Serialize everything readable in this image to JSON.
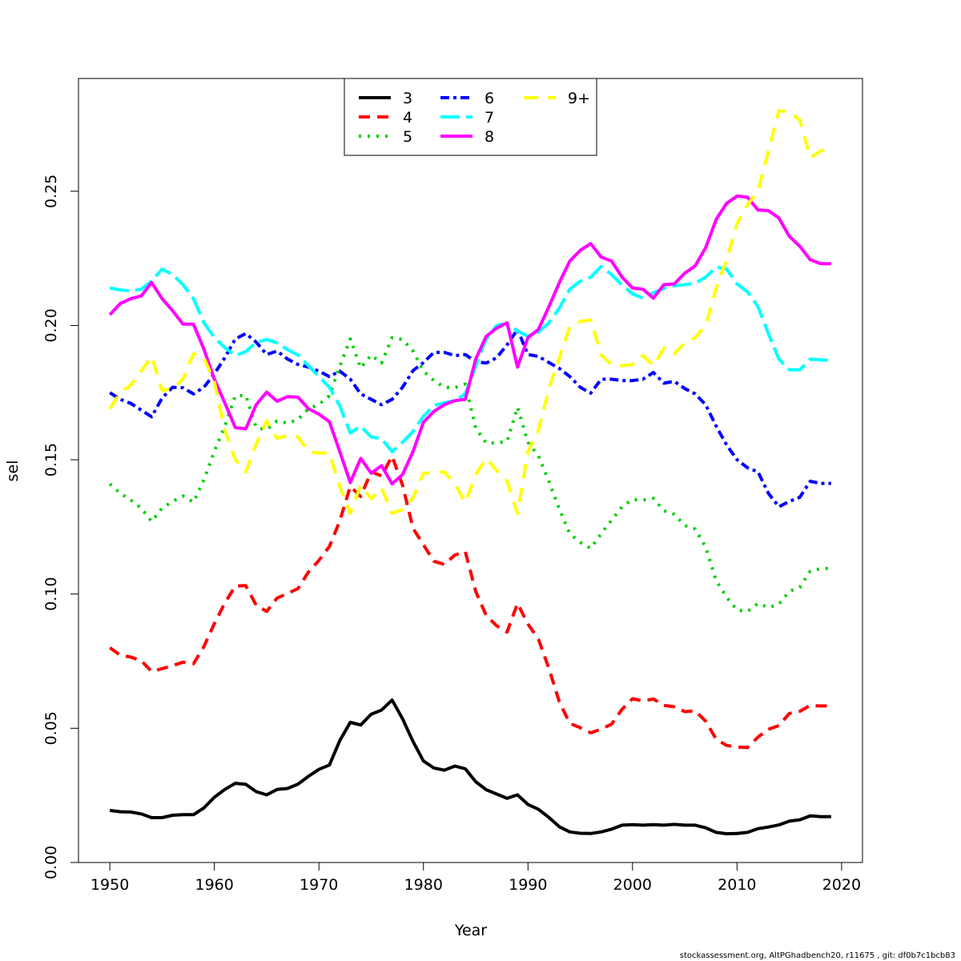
{
  "chart_data": {
    "type": "line",
    "title": "",
    "xlabel": "Year",
    "ylabel": "sel",
    "xlim": [
      1947,
      2022
    ],
    "ylim": [
      0,
      0.292
    ],
    "x_ticks": [
      1950,
      1960,
      1970,
      1980,
      1990,
      2000,
      2010,
      2020
    ],
    "x_tick_labels": [
      "1950",
      "1960",
      "1970",
      "1980",
      "1990",
      "2000",
      "2010",
      "2020"
    ],
    "y_ticks": [
      0,
      0.05,
      0.1,
      0.15,
      0.2,
      0.25
    ],
    "y_tick_labels": [
      "0.00",
      "0.05",
      "0.10",
      "0.15",
      "0.20",
      "0.25"
    ],
    "grid": false,
    "legend_position": "top-center",
    "footnote": "stockassessment.org, AltPGhadbench20, r11675 , git: df0b7c1bcb83",
    "x": [
      1950,
      1951,
      1952,
      1953,
      1954,
      1955,
      1956,
      1957,
      1958,
      1959,
      1960,
      1961,
      1962,
      1963,
      1964,
      1965,
      1966,
      1967,
      1968,
      1969,
      1970,
      1971,
      1972,
      1973,
      1974,
      1975,
      1976,
      1977,
      1978,
      1979,
      1980,
      1981,
      1982,
      1983,
      1984,
      1985,
      1986,
      1987,
      1988,
      1989,
      1990,
      1991,
      1992,
      1993,
      1994,
      1995,
      1996,
      1997,
      1998,
      1999,
      2000,
      2001,
      2002,
      2003,
      2004,
      2005,
      2006,
      2007,
      2008,
      2009,
      2010,
      2011,
      2012,
      2013,
      2014,
      2015,
      2016,
      2017,
      2018,
      2019
    ],
    "series": [
      {
        "name": "3",
        "color": "#000000",
        "dash": "solid",
        "values": [
          0.0194,
          0.0189,
          0.0188,
          0.0181,
          0.0167,
          0.0167,
          0.0176,
          0.0178,
          0.0178,
          0.0203,
          0.0243,
          0.0272,
          0.0295,
          0.0291,
          0.0264,
          0.0252,
          0.0272,
          0.0276,
          0.0292,
          0.0321,
          0.0347,
          0.0363,
          0.0454,
          0.0522,
          0.0512,
          0.0552,
          0.0568,
          0.0605,
          0.0535,
          0.0451,
          0.0378,
          0.0352,
          0.0344,
          0.0359,
          0.0349,
          0.0301,
          0.0271,
          0.0255,
          0.0239,
          0.0252,
          0.0216,
          0.0198,
          0.0168,
          0.0133,
          0.0114,
          0.0109,
          0.0108,
          0.0114,
          0.0124,
          0.0139,
          0.0141,
          0.0139,
          0.0141,
          0.0139,
          0.0142,
          0.0139,
          0.0139,
          0.0129,
          0.0112,
          0.0107,
          0.0108,
          0.0112,
          0.0126,
          0.0132,
          0.014,
          0.0154,
          0.0159,
          0.0174,
          0.0171,
          0.0171
        ]
      },
      {
        "name": "4",
        "color": "#ff0000",
        "dash": "dashed",
        "values": [
          0.08,
          0.0772,
          0.0765,
          0.0752,
          0.0711,
          0.0722,
          0.0733,
          0.0746,
          0.074,
          0.0804,
          0.089,
          0.0966,
          0.103,
          0.1031,
          0.0958,
          0.0935,
          0.0985,
          0.1002,
          0.102,
          0.1082,
          0.1125,
          0.1177,
          0.1272,
          0.1401,
          0.1363,
          0.1455,
          0.144,
          0.1513,
          0.1405,
          0.1245,
          0.1183,
          0.1122,
          0.111,
          0.1145,
          0.1158,
          0.101,
          0.092,
          0.0882,
          0.0858,
          0.0965,
          0.0888,
          0.0832,
          0.0723,
          0.0598,
          0.0518,
          0.0502,
          0.0483,
          0.0497,
          0.0515,
          0.0571,
          0.061,
          0.0602,
          0.0609,
          0.0585,
          0.058,
          0.0562,
          0.0565,
          0.0526,
          0.0459,
          0.0436,
          0.043,
          0.0428,
          0.0467,
          0.0496,
          0.051,
          0.0555,
          0.0563,
          0.0585,
          0.0583,
          0.0583
        ]
      },
      {
        "name": "5",
        "color": "#00cd00",
        "dash": "dotted",
        "values": [
          0.141,
          0.1375,
          0.135,
          0.132,
          0.127,
          0.132,
          0.1345,
          0.1365,
          0.1342,
          0.1425,
          0.1532,
          0.1625,
          0.1738,
          0.174,
          0.162,
          0.1612,
          0.1645,
          0.1636,
          0.165,
          0.169,
          0.1706,
          0.1738,
          0.1848,
          0.195,
          0.1842,
          0.189,
          0.186,
          0.1955,
          0.1948,
          0.1905,
          0.183,
          0.1795,
          0.177,
          0.1768,
          0.1782,
          0.1618,
          0.1562,
          0.1563,
          0.1568,
          0.1696,
          0.1565,
          0.1515,
          0.142,
          0.1315,
          0.1225,
          0.1192,
          0.117,
          0.1225,
          0.1275,
          0.1325,
          0.1352,
          0.135,
          0.1356,
          0.131,
          0.1297,
          0.1255,
          0.1242,
          0.1175,
          0.105,
          0.0988,
          0.094,
          0.0935,
          0.0965,
          0.095,
          0.0962,
          0.101,
          0.1025,
          0.1085,
          0.1095,
          0.1095
        ]
      },
      {
        "name": "6",
        "color": "#0000ff",
        "dash": "dashdot",
        "values": [
          0.175,
          0.1725,
          0.171,
          0.1685,
          0.166,
          0.173,
          0.177,
          0.1768,
          0.1745,
          0.177,
          0.182,
          0.188,
          0.195,
          0.197,
          0.1938,
          0.1892,
          0.1905,
          0.1875,
          0.1855,
          0.1845,
          0.183,
          0.181,
          0.183,
          0.18,
          0.1745,
          0.1725,
          0.1705,
          0.1725,
          0.177,
          0.1832,
          0.1862,
          0.19,
          0.19,
          0.1888,
          0.1892,
          0.1865,
          0.186,
          0.188,
          0.1928,
          0.1985,
          0.1892,
          0.1885,
          0.1862,
          0.184,
          0.181,
          0.177,
          0.1748,
          0.18,
          0.18,
          0.1795,
          0.1795,
          0.18,
          0.1825,
          0.1785,
          0.1792,
          0.1765,
          0.1745,
          0.1705,
          0.1625,
          0.1555,
          0.15,
          0.147,
          0.1455,
          0.1375,
          0.1325,
          0.1345,
          0.136,
          0.142,
          0.1412,
          0.1412
        ]
      },
      {
        "name": "7",
        "color": "#00ffff",
        "dash": "longdash",
        "values": [
          0.214,
          0.2132,
          0.213,
          0.2135,
          0.2165,
          0.221,
          0.219,
          0.2152,
          0.21,
          0.201,
          0.1955,
          0.1918,
          0.1888,
          0.1903,
          0.1937,
          0.1948,
          0.1935,
          0.191,
          0.189,
          0.185,
          0.181,
          0.177,
          0.17,
          0.16,
          0.1625,
          0.1585,
          0.1578,
          0.153,
          0.1565,
          0.1605,
          0.1662,
          0.1702,
          0.1712,
          0.172,
          0.1745,
          0.185,
          0.195,
          0.2,
          0.2008,
          0.198,
          0.196,
          0.1975,
          0.201,
          0.2065,
          0.2135,
          0.2165,
          0.218,
          0.222,
          0.219,
          0.215,
          0.2118,
          0.2102,
          0.2122,
          0.2138,
          0.2148,
          0.2152,
          0.2158,
          0.218,
          0.2218,
          0.221,
          0.2155,
          0.2125,
          0.207,
          0.197,
          0.1875,
          0.1835,
          0.1835,
          0.1875,
          0.1872,
          0.187
        ]
      },
      {
        "name": "8",
        "color": "#ff00ff",
        "dash": "solid",
        "values": [
          0.204,
          0.2082,
          0.21,
          0.211,
          0.216,
          0.21,
          0.2055,
          0.2005,
          0.2005,
          0.1912,
          0.18,
          0.1712,
          0.162,
          0.1615,
          0.1705,
          0.1752,
          0.1718,
          0.1735,
          0.1733,
          0.169,
          0.167,
          0.1642,
          0.153,
          0.1415,
          0.1505,
          0.145,
          0.1478,
          0.141,
          0.1445,
          0.153,
          0.164,
          0.168,
          0.1705,
          0.172,
          0.1725,
          0.1875,
          0.196,
          0.199,
          0.201,
          0.1845,
          0.1955,
          0.1985,
          0.207,
          0.216,
          0.224,
          0.228,
          0.2305,
          0.2255,
          0.224,
          0.218,
          0.214,
          0.2135,
          0.2102,
          0.2152,
          0.2155,
          0.2195,
          0.2222,
          0.229,
          0.2395,
          0.2455,
          0.2482,
          0.2478,
          0.243,
          0.2428,
          0.24,
          0.2332,
          0.2295,
          0.2245,
          0.223,
          0.223
        ]
      },
      {
        "name": "9+",
        "color": "#ffff00",
        "dash": "longdash2",
        "values": [
          0.169,
          0.175,
          0.1778,
          0.183,
          0.1885,
          0.1758,
          0.1765,
          0.18,
          0.1895,
          0.188,
          0.179,
          0.161,
          0.15,
          0.1455,
          0.1558,
          0.1645,
          0.158,
          0.159,
          0.1585,
          0.153,
          0.1525,
          0.1525,
          0.14,
          0.13,
          0.1405,
          0.1355,
          0.1395,
          0.13,
          0.1315,
          0.1358,
          0.145,
          0.1452,
          0.1455,
          0.141,
          0.134,
          0.1445,
          0.1505,
          0.146,
          0.142,
          0.13,
          0.153,
          0.161,
          0.1765,
          0.188,
          0.1995,
          0.2015,
          0.202,
          0.189,
          0.1855,
          0.185,
          0.1855,
          0.1888,
          0.185,
          0.1915,
          0.1895,
          0.1935,
          0.1955,
          0.2,
          0.214,
          0.2245,
          0.238,
          0.245,
          0.25,
          0.265,
          0.28,
          0.2795,
          0.2765,
          0.2625,
          0.265,
          0.266
        ]
      }
    ]
  }
}
